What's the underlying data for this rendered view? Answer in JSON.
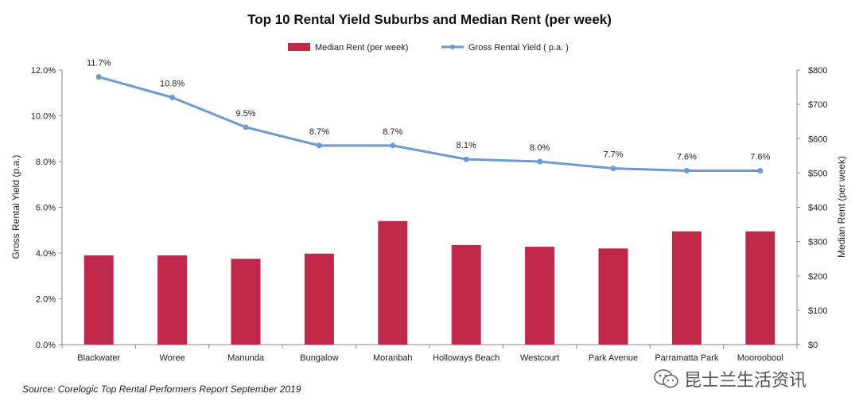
{
  "chart_data": {
    "type": "bar+line",
    "title": "Top 10 Rental Yield Suburbs and Median Rent (per week)",
    "categories": [
      "Blackwater",
      "Woree",
      "Manunda",
      "Bungalow",
      "Moranbah",
      "Holloways Beach",
      "Westcourt",
      "Park Avenue",
      "Parramatta Park",
      "Mooroobool"
    ],
    "series": [
      {
        "name": "Median Rent (per week)",
        "type": "bar",
        "axis": "right",
        "color": "#c0284a",
        "values": [
          260,
          260,
          250,
          265,
          360,
          290,
          285,
          280,
          330,
          330
        ]
      },
      {
        "name": "Gross Rental Yield ( p.a. )",
        "type": "line",
        "axis": "left",
        "color": "#6d9bd1",
        "values": [
          11.7,
          10.8,
          9.5,
          8.7,
          8.7,
          8.1,
          8.0,
          7.7,
          7.6,
          7.6
        ],
        "labels": [
          "11.7%",
          "10.8%",
          "9.5%",
          "8.7%",
          "8.7%",
          "8.1%",
          "8.0%",
          "7.7%",
          "7.6%",
          "7.6%"
        ]
      }
    ],
    "y_left": {
      "label": "Gross Rental Yield (p.a.)",
      "ylim": [
        0,
        12
      ],
      "ticks": [
        0,
        2,
        4,
        6,
        8,
        10,
        12
      ],
      "tick_labels": [
        "0.0%",
        "2.0%",
        "4.0%",
        "6.0%",
        "8.0%",
        "10.0%",
        "12.0%"
      ]
    },
    "y_right": {
      "label": "Median Rent (per week)",
      "ylim": [
        0,
        800
      ],
      "ticks": [
        0,
        100,
        200,
        300,
        400,
        500,
        600,
        700,
        800
      ],
      "tick_labels": [
        "$0",
        "$100",
        "$200",
        "$300",
        "$400",
        "$500",
        "$600",
        "$700",
        "$800"
      ]
    },
    "legend_position": "top-center",
    "grid": false
  },
  "source": "Source: Corelogic Top Rental Performers Report September 2019",
  "watermark": "昆士兰生活资讯"
}
